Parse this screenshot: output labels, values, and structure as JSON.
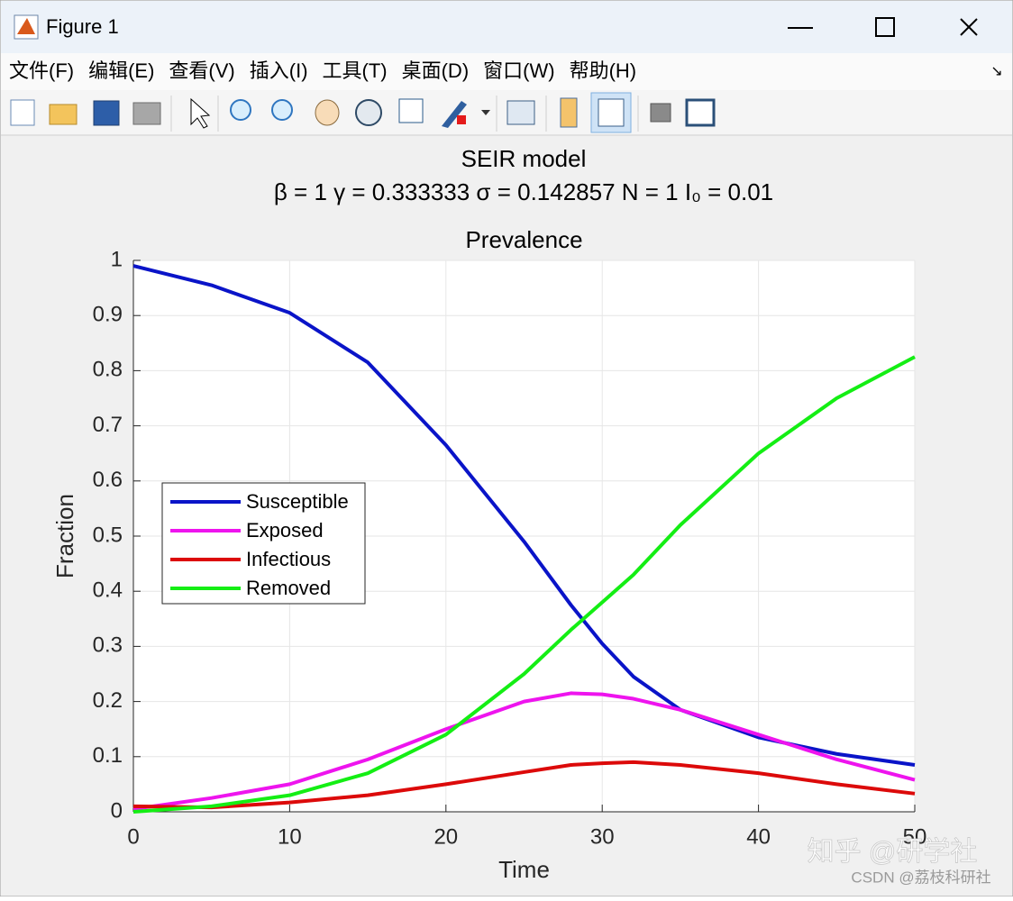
{
  "window": {
    "title": "Figure 1",
    "menus": [
      "文件(F)",
      "编辑(E)",
      "查看(V)",
      "插入(I)",
      "工具(T)",
      "桌面(D)",
      "窗口(W)",
      "帮助(H)"
    ]
  },
  "watermark": [
    "知乎 @研学社",
    "CSDN @荔枝科研社"
  ],
  "chart_data": {
    "type": "line",
    "suptitle": "SEIR model",
    "subtitle": "β = 1  γ = 0.333333  σ = 0.142857  N = 1  I₀ = 0.01",
    "title": "Prevalence",
    "x_label": "Time",
    "y_label": "Fraction",
    "x": [
      0,
      5,
      10,
      15,
      20,
      25,
      28,
      30,
      32,
      35,
      40,
      45,
      50
    ],
    "series": [
      {
        "name": "Susceptible",
        "color": "#0a14c8",
        "values": [
          0.99,
          0.955,
          0.905,
          0.815,
          0.665,
          0.49,
          0.375,
          0.305,
          0.245,
          0.185,
          0.135,
          0.105,
          0.085
        ]
      },
      {
        "name": "Exposed",
        "color": "#ee14ee",
        "values": [
          0.005,
          0.025,
          0.05,
          0.095,
          0.15,
          0.2,
          0.215,
          0.213,
          0.205,
          0.185,
          0.14,
          0.095,
          0.058
        ]
      },
      {
        "name": "Infectious",
        "color": "#dc0a0a",
        "values": [
          0.01,
          0.008,
          0.017,
          0.03,
          0.05,
          0.072,
          0.085,
          0.088,
          0.09,
          0.085,
          0.07,
          0.05,
          0.033
        ]
      },
      {
        "name": "Removed",
        "color": "#14ee14",
        "values": [
          0,
          0.01,
          0.03,
          0.07,
          0.14,
          0.25,
          0.33,
          0.38,
          0.43,
          0.52,
          0.65,
          0.75,
          0.825
        ]
      }
    ],
    "xlim": [
      0,
      50
    ],
    "ylim": [
      0,
      1
    ],
    "xticks": [
      0,
      10,
      20,
      30,
      40,
      50
    ],
    "yticks": [
      0,
      0.1,
      0.2,
      0.3,
      0.4,
      0.5,
      0.6,
      0.7,
      0.8,
      0.9,
      1
    ],
    "grid": true,
    "legend_location": "west"
  }
}
